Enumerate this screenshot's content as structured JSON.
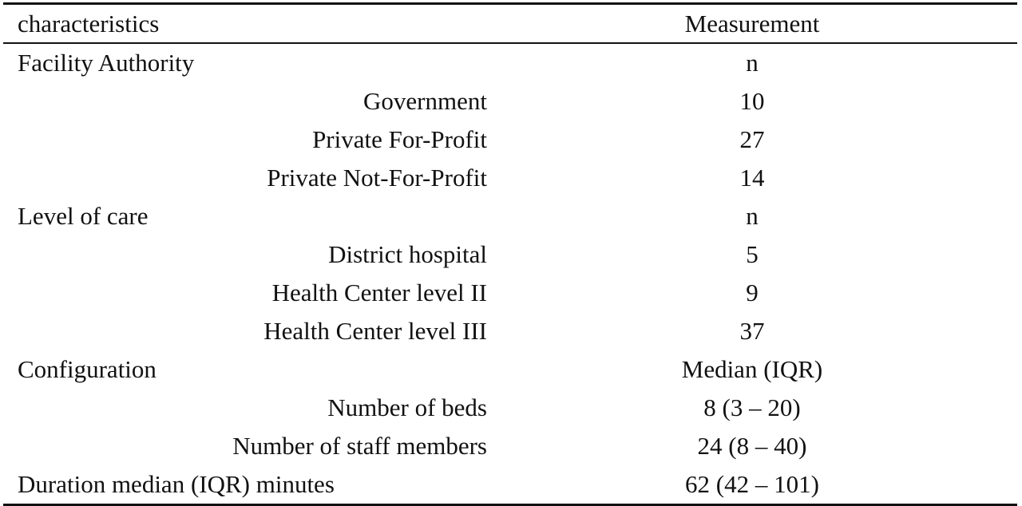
{
  "header": {
    "col1": "characteristics",
    "col2": "Measurement"
  },
  "rows": [
    {
      "label": "Facility Authority",
      "value": "n",
      "kind": "category"
    },
    {
      "label": "Government",
      "value": "10",
      "kind": "sub"
    },
    {
      "label": "Private For-Profit",
      "value": "27",
      "kind": "sub"
    },
    {
      "label": "Private Not-For-Profit",
      "value": "14",
      "kind": "sub"
    },
    {
      "label": "Level of care",
      "value": "n",
      "kind": "category"
    },
    {
      "label": "District hospital",
      "value": "5",
      "kind": "sub"
    },
    {
      "label": "Health Center level II",
      "value": "9",
      "kind": "sub"
    },
    {
      "label": "Health Center level III",
      "value": "37",
      "kind": "sub"
    },
    {
      "label": "Configuration",
      "value": "Median (IQR)",
      "kind": "category"
    },
    {
      "label": "Number of beds",
      "value": "8 (3 – 20)",
      "kind": "sub"
    },
    {
      "label": "Number of staff members",
      "value": "24 (8 – 40)",
      "kind": "sub"
    },
    {
      "label": "Duration median (IQR) minutes",
      "value": "62 (42 – 101)",
      "kind": "category"
    }
  ]
}
